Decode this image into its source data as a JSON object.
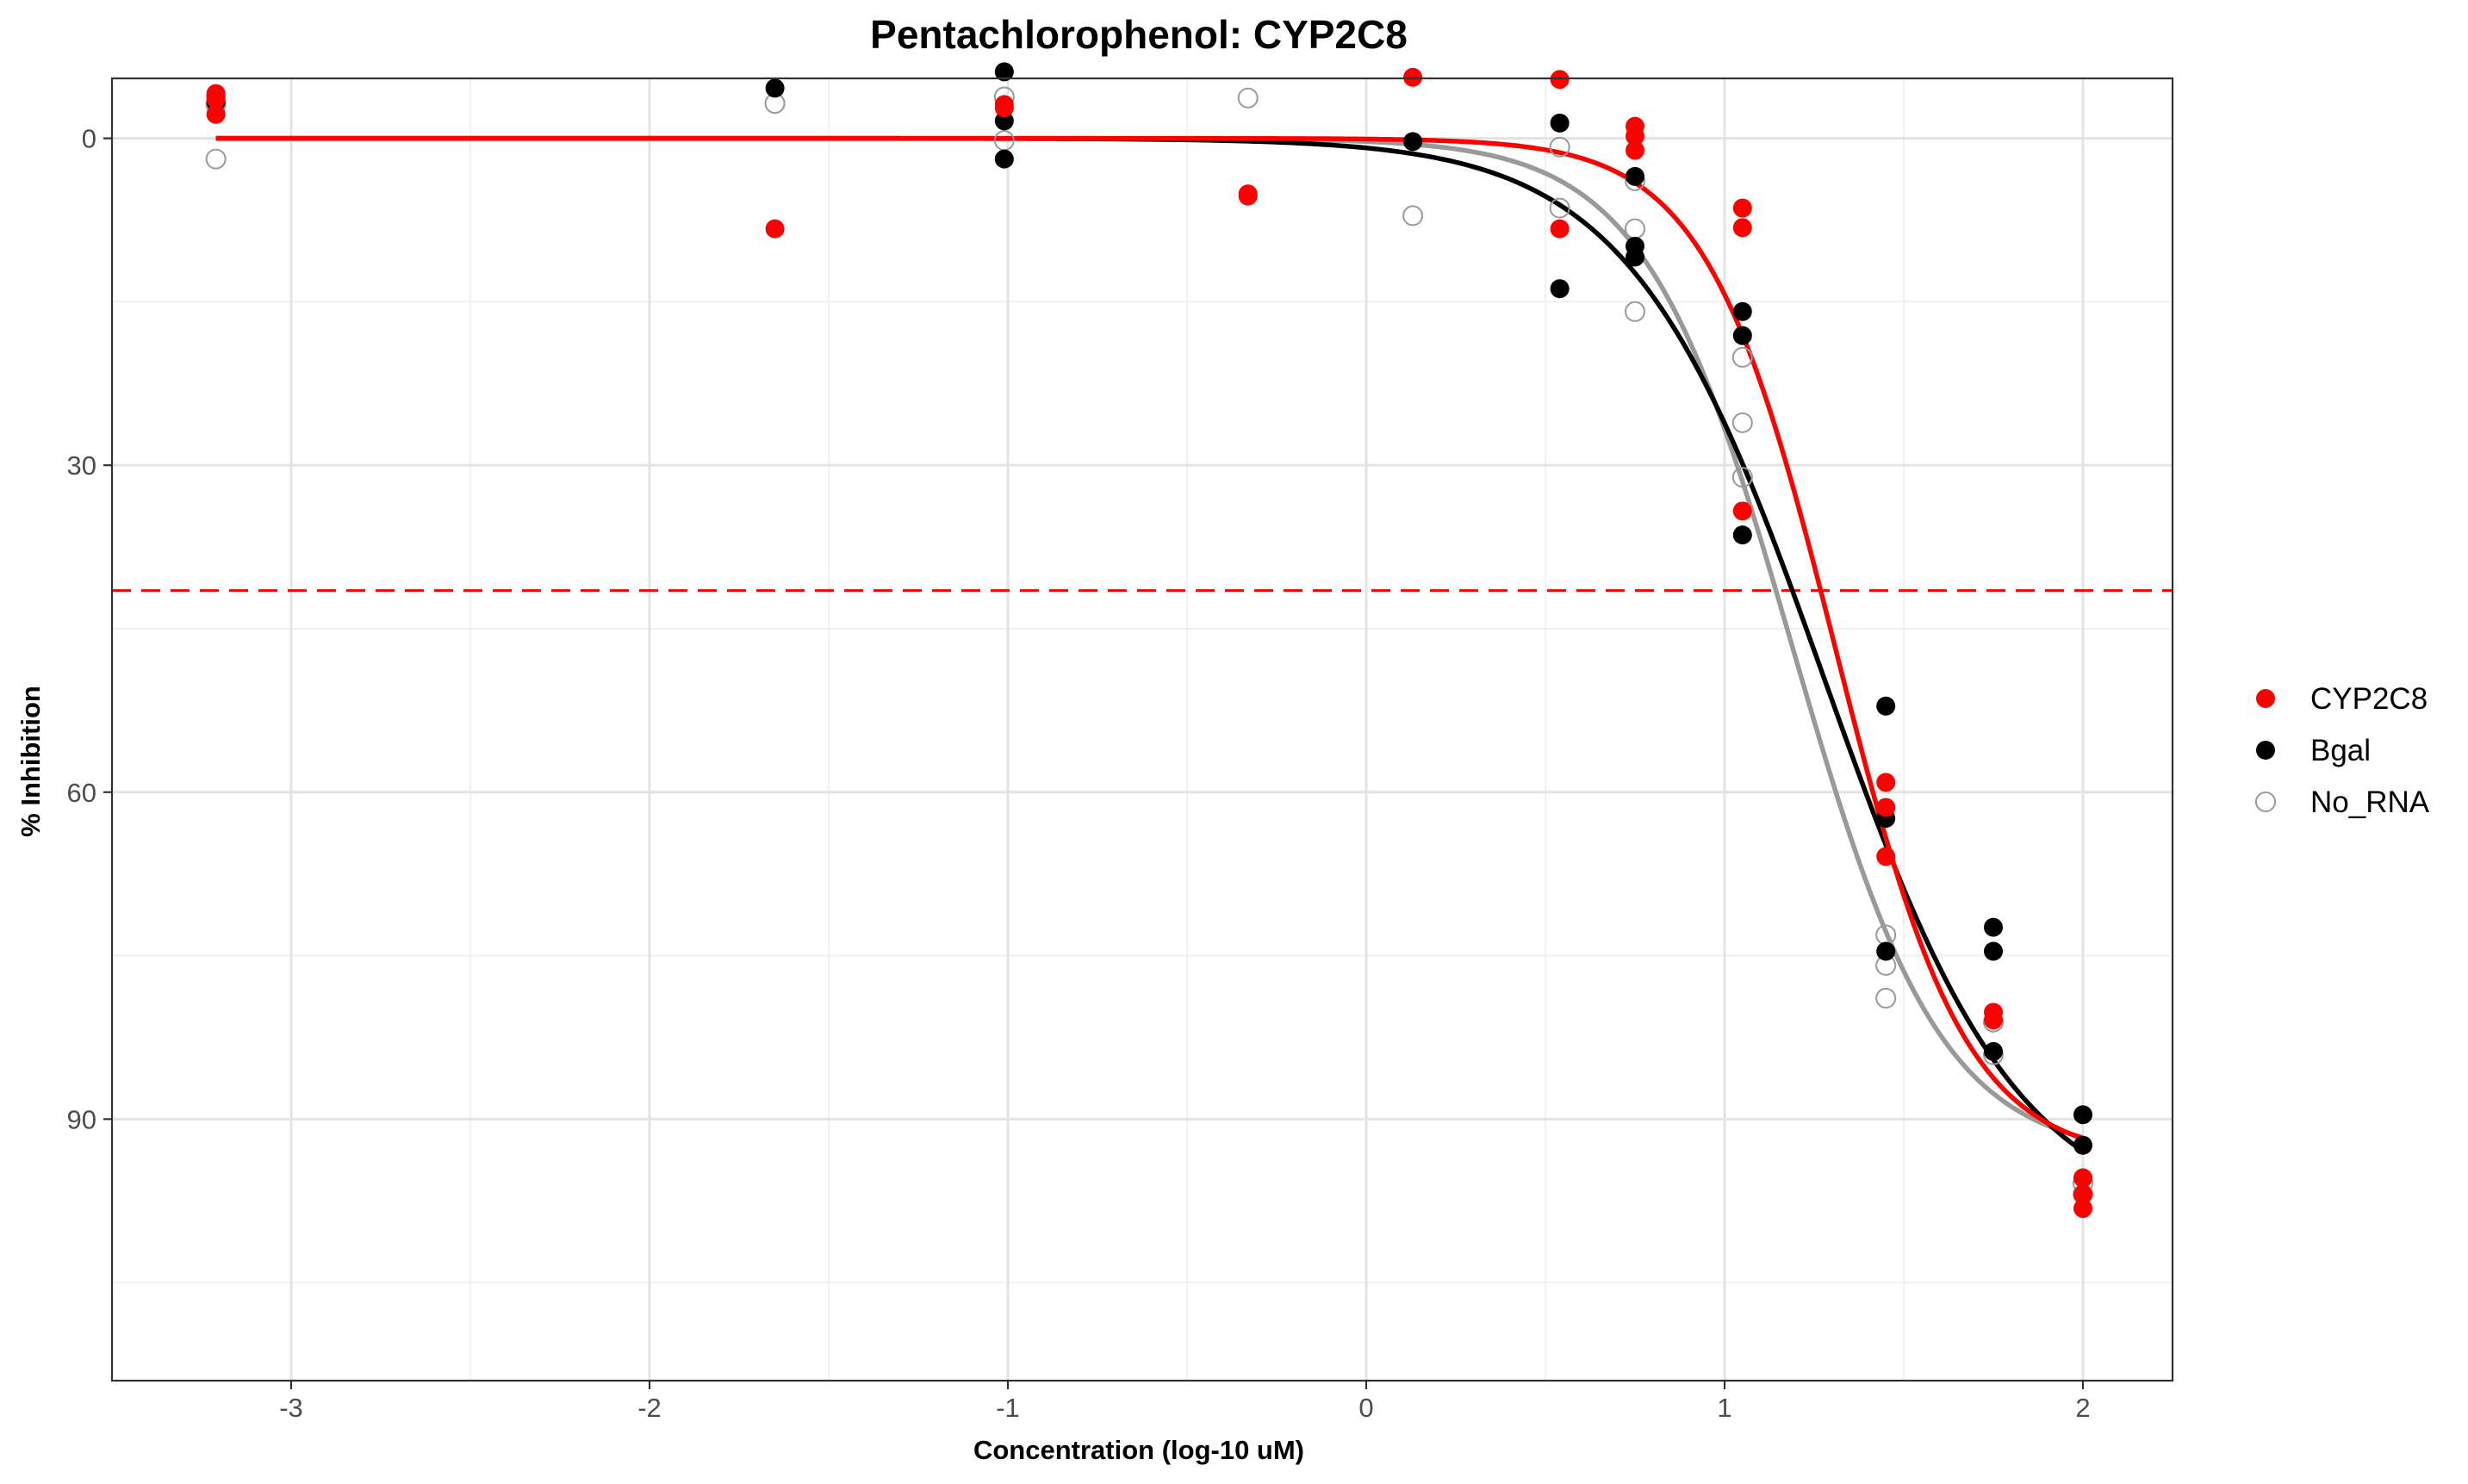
{
  "chart_data": {
    "type": "scatter",
    "title": "Pentachlorophenol: CYP2C8",
    "xlabel": "Concentration (log-10 uM)",
    "ylabel": "% Inhibition",
    "xlim": [
      -3.5,
      2.25
    ],
    "ylim": [
      5.5,
      -114
    ],
    "y_reversed": true,
    "x_ticks": [
      -3,
      -2,
      -1,
      0,
      1,
      2
    ],
    "x_tick_labels": [
      "-3",
      "-2",
      "-1",
      "0",
      "1",
      "2"
    ],
    "y_ticks": [
      0,
      -30,
      -60,
      -90
    ],
    "y_tick_labels": [
      "0",
      "30",
      "60",
      "90"
    ],
    "reference_line": {
      "y": -41.5,
      "color": "#ff0000",
      "style": "dashed"
    },
    "grid": true,
    "legend_position": "right",
    "series": [
      {
        "name": "CYP2C8",
        "color": "#ff0000",
        "marker": "filled-circle",
        "fit": {
          "top": 0,
          "bottom": -93.8,
          "log_ic50": 1.31,
          "hill": 2.4
        },
        "points": [
          [
            -3.21,
            4.1
          ],
          [
            -3.21,
            2.2
          ],
          [
            -3.21,
            3.6
          ],
          [
            -1.65,
            -8.3
          ],
          [
            -1.01,
            2.8
          ],
          [
            -1.01,
            3.1
          ],
          [
            -0.33,
            -5.1
          ],
          [
            -0.33,
            -5.3
          ],
          [
            0.13,
            5.6
          ],
          [
            0.54,
            5.4
          ],
          [
            0.54,
            -8.3
          ],
          [
            0.75,
            1.1
          ],
          [
            0.75,
            0.2
          ],
          [
            0.75,
            -1.1
          ],
          [
            1.05,
            -6.4
          ],
          [
            1.05,
            -8.2
          ],
          [
            1.05,
            -34.2
          ],
          [
            1.45,
            -59.1
          ],
          [
            1.45,
            -65.9
          ],
          [
            1.45,
            -61.4
          ],
          [
            1.75,
            -80.2
          ],
          [
            1.75,
            -80.9
          ],
          [
            2.0,
            -95.4
          ],
          [
            2.0,
            -96.9
          ],
          [
            2.0,
            -98.2
          ]
        ]
      },
      {
        "name": "Bgal",
        "color": "#000000",
        "marker": "filled-circle",
        "fit": {
          "top": 0,
          "bottom": -99.5,
          "log_ic50": 1.28,
          "hill": 1.6
        },
        "points": [
          [
            -3.21,
            3.9
          ],
          [
            -3.21,
            3.3
          ],
          [
            -1.65,
            4.6
          ],
          [
            -1.01,
            6.1
          ],
          [
            -1.01,
            1.6
          ],
          [
            -1.01,
            -1.9
          ],
          [
            0.13,
            -0.3
          ],
          [
            0.54,
            1.4
          ],
          [
            0.54,
            -13.8
          ],
          [
            0.75,
            -9.9
          ],
          [
            0.75,
            -10.9
          ],
          [
            0.75,
            -3.5
          ],
          [
            1.05,
            -15.9
          ],
          [
            1.05,
            -18.1
          ],
          [
            1.05,
            -36.4
          ],
          [
            1.45,
            -52.1
          ],
          [
            1.45,
            -62.4
          ],
          [
            1.45,
            -74.6
          ],
          [
            1.75,
            -72.4
          ],
          [
            1.75,
            -74.6
          ],
          [
            1.75,
            -83.8
          ],
          [
            2.0,
            -89.6
          ],
          [
            2.0,
            -92.4
          ],
          [
            2.0,
            -95.4
          ]
        ]
      },
      {
        "name": "No_RNA",
        "color": "#999999",
        "marker": "open-circle",
        "fit": {
          "top": 0,
          "bottom": -93.5,
          "log_ic50": 1.19,
          "hill": 2.1
        },
        "points": [
          [
            -3.21,
            -1.9
          ],
          [
            -3.21,
            3.1
          ],
          [
            -1.65,
            3.2
          ],
          [
            -1.01,
            3.8
          ],
          [
            -1.01,
            -0.2
          ],
          [
            -0.33,
            3.7
          ],
          [
            0.13,
            -7.1
          ],
          [
            0.54,
            -6.4
          ],
          [
            0.54,
            -0.8
          ],
          [
            0.75,
            -8.3
          ],
          [
            0.75,
            -15.9
          ],
          [
            0.75,
            -3.9
          ],
          [
            1.05,
            -20.1
          ],
          [
            1.05,
            -26.1
          ],
          [
            1.05,
            -31.1
          ],
          [
            1.45,
            -73.1
          ],
          [
            1.45,
            -75.9
          ],
          [
            1.45,
            -78.9
          ],
          [
            1.75,
            -81.1
          ],
          [
            1.75,
            -84.1
          ],
          [
            2.0,
            -95.9
          ],
          [
            2.0,
            -96.9
          ]
        ]
      }
    ]
  }
}
